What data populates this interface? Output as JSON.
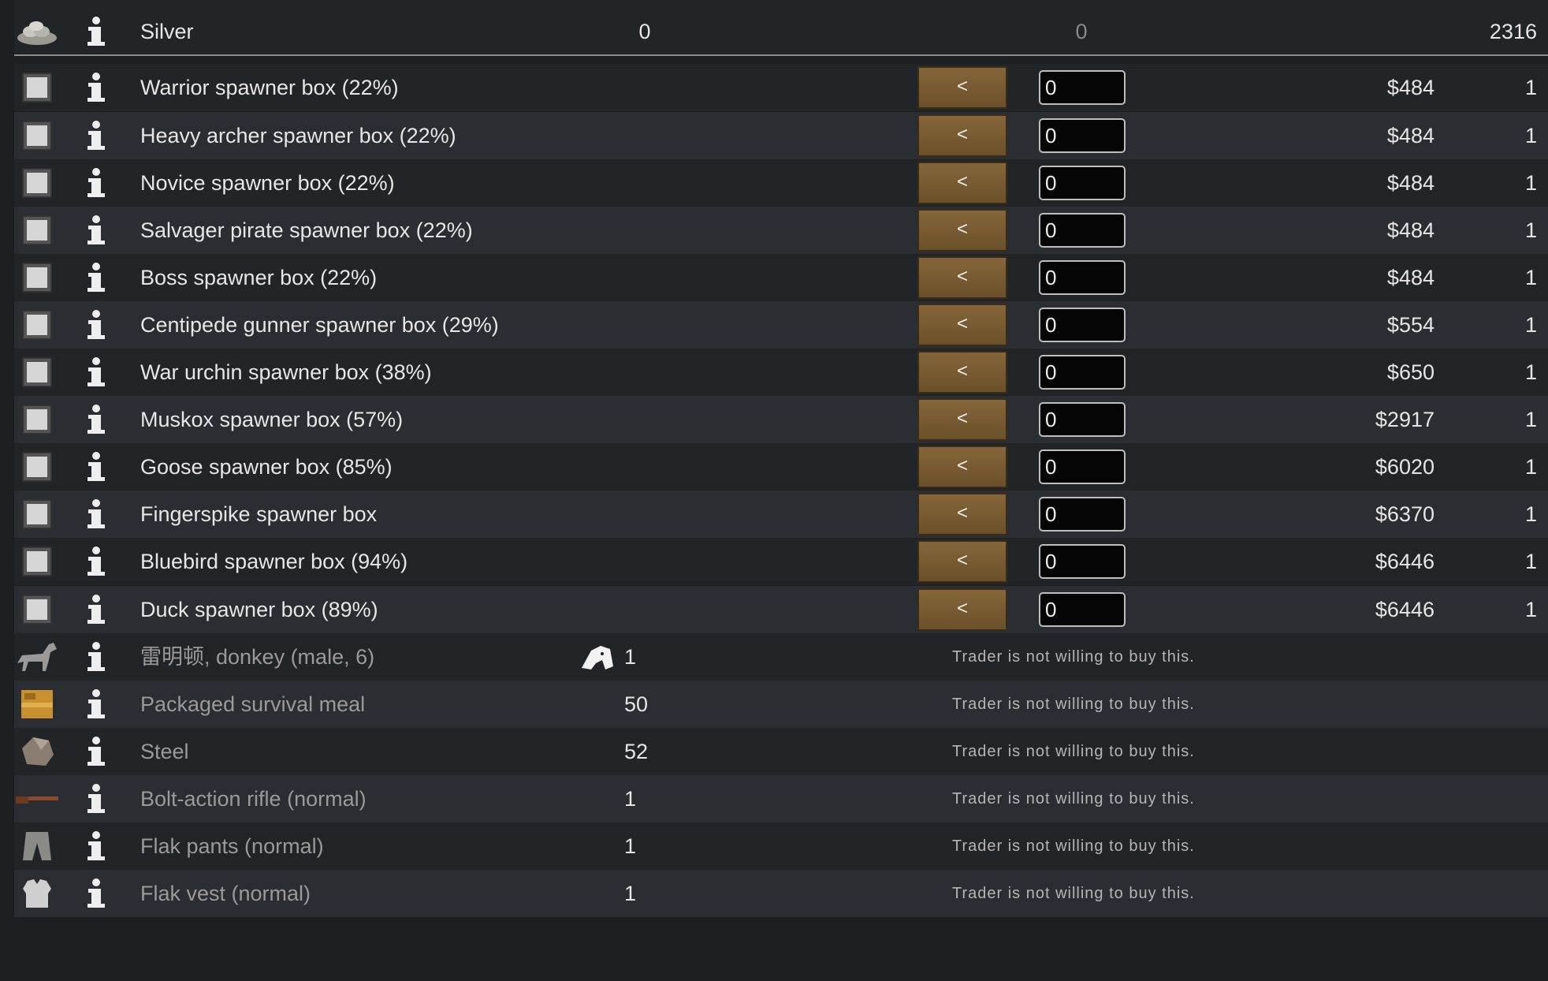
{
  "silver": {
    "name": "Silver",
    "colony_count": "0",
    "trade_amount": "0",
    "trader_count": "2316"
  },
  "sellable": [
    {
      "name": "Warrior spawner box (22%)",
      "button": "<",
      "amount": "0",
      "price": "$484",
      "trader_count": "1"
    },
    {
      "name": "Heavy archer spawner box (22%)",
      "button": "<",
      "amount": "0",
      "price": "$484",
      "trader_count": "1"
    },
    {
      "name": "Novice spawner box (22%)",
      "button": "<",
      "amount": "0",
      "price": "$484",
      "trader_count": "1"
    },
    {
      "name": "Salvager pirate spawner box (22%)",
      "button": "<",
      "amount": "0",
      "price": "$484",
      "trader_count": "1"
    },
    {
      "name": "Boss spawner box (22%)",
      "button": "<",
      "amount": "0",
      "price": "$484",
      "trader_count": "1"
    },
    {
      "name": "Centipede gunner spawner box (29%)",
      "button": "<",
      "amount": "0",
      "price": "$554",
      "trader_count": "1"
    },
    {
      "name": "War urchin spawner box (38%)",
      "button": "<",
      "amount": "0",
      "price": "$650",
      "trader_count": "1"
    },
    {
      "name": "Muskox spawner box (57%)",
      "button": "<",
      "amount": "0",
      "price": "$2917",
      "trader_count": "1"
    },
    {
      "name": "Goose spawner box (85%)",
      "button": "<",
      "amount": "0",
      "price": "$6020",
      "trader_count": "1"
    },
    {
      "name": "Fingerspike spawner box",
      "button": "<",
      "amount": "0",
      "price": "$6370",
      "trader_count": "1"
    },
    {
      "name": "Bluebird spawner box (94%)",
      "button": "<",
      "amount": "0",
      "price": "$6446",
      "trader_count": "1"
    },
    {
      "name": "Duck spawner box (89%)",
      "button": "<",
      "amount": "0",
      "price": "$6446",
      "trader_count": "1"
    }
  ],
  "unsellable": [
    {
      "name": "雷明顿, donkey (male, 6)",
      "count": "1",
      "note": "Trader is not willing to buy this."
    },
    {
      "name": "Packaged survival meal",
      "count": "50",
      "note": "Trader is not willing to buy this."
    },
    {
      "name": "Steel",
      "count": "52",
      "note": "Trader is not willing to buy this."
    },
    {
      "name": "Bolt-action rifle (normal)",
      "count": "1",
      "note": "Trader is not willing to buy this."
    },
    {
      "name": "Flak pants (normal)",
      "count": "1",
      "note": "Trader is not willing to buy this."
    },
    {
      "name": "Flak vest (normal)",
      "count": "1",
      "note": "Trader is not willing to buy this."
    }
  ]
}
